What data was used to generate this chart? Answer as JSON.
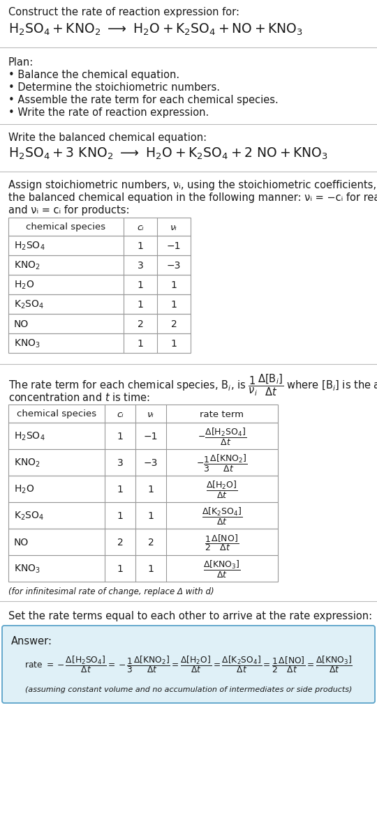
{
  "bg_color": "#ffffff",
  "text_color": "#1a1a1a",
  "title_line1": "Construct the rate of reaction expression for:",
  "plan_header": "Plan:",
  "plan_items": [
    "• Balance the chemical equation.",
    "• Determine the stoichiometric numbers.",
    "• Assemble the rate term for each chemical species.",
    "• Write the rate of reaction expression."
  ],
  "balanced_header": "Write the balanced chemical equation:",
  "assign_text1": "Assign stoichiometric numbers, νᵢ, using the stoichiometric coefficients, cᵢ, from",
  "assign_text2": "the balanced chemical equation in the following manner: νᵢ = −cᵢ for reactants",
  "assign_text3": "and νᵢ = cᵢ for products:",
  "table1_headers": [
    "chemical species",
    "cᵢ",
    "νᵢ"
  ],
  "table1_rows": [
    [
      "H₂SO₄",
      "1",
      "−1"
    ],
    [
      "KNO₂",
      "3",
      "−3"
    ],
    [
      "H₂O",
      "1",
      "1"
    ],
    [
      "K₂SO₄",
      "1",
      "1"
    ],
    [
      "NO",
      "2",
      "2"
    ],
    [
      "KNO₃",
      "1",
      "1"
    ]
  ],
  "table2_headers": [
    "chemical species",
    "cᵢ",
    "νᵢ",
    "rate term"
  ],
  "table2_rows": [
    [
      "H₂SO₄",
      "1",
      "−1"
    ],
    [
      "KNO₂",
      "3",
      "−3"
    ],
    [
      "H₂O",
      "1",
      "1"
    ],
    [
      "K₂SO₄",
      "1",
      "1"
    ],
    [
      "NO",
      "2",
      "2"
    ],
    [
      "KNO₃",
      "1",
      "1"
    ]
  ],
  "footnote": "(for infinitesimal rate of change, replace Δ with d)",
  "set_rate_text": "Set the rate terms equal to each other to arrive at the rate expression:",
  "answer_box_color": "#dff0f7",
  "answer_box_border": "#5ba3c9",
  "species_math": [
    "$\\mathrm{H_2SO_4}$",
    "$\\mathrm{KNO_2}$",
    "$\\mathrm{H_2O}$",
    "$\\mathrm{K_2SO_4}$",
    "NO",
    "$\\mathrm{KNO_3}$"
  ],
  "rate_terms": [
    "$-\\dfrac{\\Delta[\\mathrm{H_2SO_4}]}{\\Delta t}$",
    "$-\\dfrac{1}{3}\\dfrac{\\Delta[\\mathrm{KNO_2}]}{\\Delta t}$",
    "$\\dfrac{\\Delta[\\mathrm{H_2O}]}{\\Delta t}$",
    "$\\dfrac{\\Delta[\\mathrm{K_2SO_4}]}{\\Delta t}$",
    "$\\dfrac{1}{2}\\dfrac{\\Delta[\\mathrm{NO}]}{\\Delta t}$",
    "$\\dfrac{\\Delta[\\mathrm{KNO_3}]}{\\Delta t}$"
  ]
}
